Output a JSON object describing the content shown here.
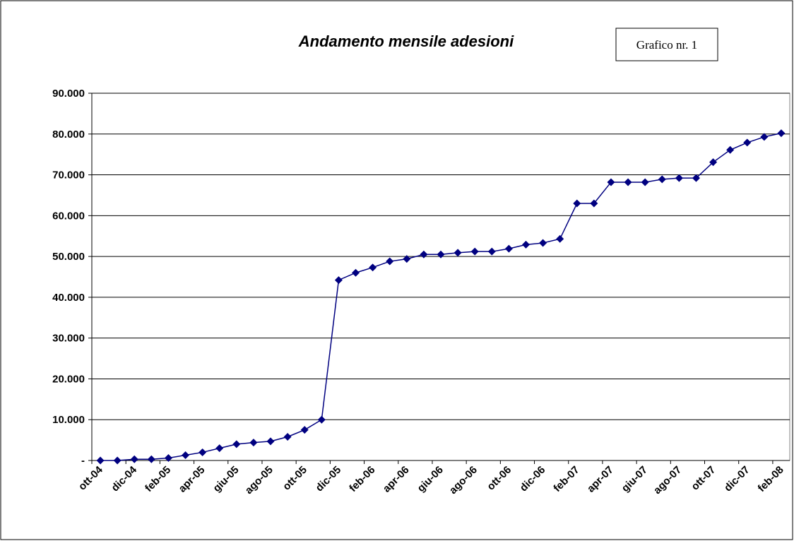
{
  "chart_data": {
    "type": "line",
    "title": "Andamento mensile adesioni",
    "annotation": "Grafico nr. 1",
    "categories": [
      "ott-04",
      null,
      "dic-04",
      null,
      "feb-05",
      null,
      "apr-05",
      null,
      "giu-05",
      null,
      "ago-05",
      null,
      "ott-05",
      null,
      "dic-05",
      null,
      "feb-06",
      null,
      "apr-06",
      null,
      "giu-06",
      null,
      "ago-06",
      null,
      "ott-06",
      null,
      "dic-06",
      null,
      "feb-07",
      null,
      "apr-07",
      null,
      "giu-07",
      null,
      "ago-07",
      null,
      "ott-07",
      null,
      "dic-07",
      null,
      "feb-08"
    ],
    "series": [
      {
        "name": "adesioni",
        "color": "#000080",
        "values": [
          0,
          0,
          300,
          300,
          600,
          1300,
          2000,
          3000,
          4000,
          4400,
          4700,
          5800,
          7500,
          10000,
          44200,
          46000,
          47300,
          48800,
          49400,
          50500,
          50500,
          50900,
          51200,
          51200,
          51900,
          52900,
          53300,
          54300,
          63000,
          63000,
          68200,
          68200,
          68200,
          68900,
          69200,
          69200,
          73100,
          76100,
          77900,
          79300,
          80200
        ]
      }
    ],
    "ylim": [
      0,
      90000
    ],
    "yticks": [
      {
        "value": 0,
        "label": "-"
      },
      {
        "value": 10000,
        "label": "10.000"
      },
      {
        "value": 20000,
        "label": "20.000"
      },
      {
        "value": 30000,
        "label": "30.000"
      },
      {
        "value": 40000,
        "label": "40.000"
      },
      {
        "value": 50000,
        "label": "50.000"
      },
      {
        "value": 60000,
        "label": "60.000"
      },
      {
        "value": 70000,
        "label": "70.000"
      },
      {
        "value": 80000,
        "label": "80.000"
      },
      {
        "value": 90000,
        "label": "90.000"
      }
    ],
    "grid": true
  }
}
